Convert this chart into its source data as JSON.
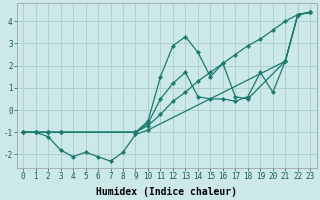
{
  "xlabel": "Humidex (Indice chaleur)",
  "xlim": [
    -0.5,
    23.5
  ],
  "ylim": [
    -2.6,
    4.8
  ],
  "background_color": "#cce8e8",
  "grid_color": "#aed0d0",
  "line_color": "#1a7a6e",
  "lines": [
    {
      "x": [
        0,
        1,
        2,
        3,
        4,
        5,
        6,
        7,
        8,
        9,
        10,
        21,
        22,
        23
      ],
      "y": [
        -1.0,
        -1.0,
        -1.2,
        -1.8,
        -2.1,
        -1.9,
        -2.1,
        -2.3,
        -1.9,
        -1.1,
        -0.9,
        2.2,
        4.3,
        4.4
      ]
    },
    {
      "x": [
        0,
        1,
        2,
        3,
        9,
        10,
        11,
        12,
        13,
        14,
        15,
        16,
        17,
        18,
        19,
        20,
        21,
        22,
        23
      ],
      "y": [
        -1.0,
        -1.0,
        -1.0,
        -1.0,
        -1.0,
        -0.7,
        -0.2,
        0.4,
        0.8,
        1.3,
        1.7,
        2.1,
        2.5,
        2.9,
        3.2,
        3.6,
        4.0,
        4.3,
        4.4
      ]
    },
    {
      "x": [
        0,
        1,
        2,
        3,
        9,
        10,
        11,
        12,
        13,
        14,
        15,
        16,
        17,
        18,
        21,
        22,
        23
      ],
      "y": [
        -1.0,
        -1.0,
        -1.0,
        -1.0,
        -1.0,
        -0.5,
        1.5,
        2.9,
        3.3,
        2.6,
        1.5,
        2.1,
        0.6,
        0.5,
        2.2,
        4.3,
        4.4
      ]
    },
    {
      "x": [
        0,
        1,
        2,
        3,
        9,
        10,
        11,
        12,
        13,
        14,
        15,
        16,
        17,
        18,
        19,
        20,
        21,
        22,
        23
      ],
      "y": [
        -1.0,
        -1.0,
        -1.0,
        -1.0,
        -1.0,
        -0.6,
        0.5,
        1.2,
        1.7,
        0.6,
        0.5,
        0.5,
        0.4,
        0.6,
        1.7,
        0.8,
        2.2,
        4.3,
        4.4
      ]
    }
  ],
  "xticks": [
    0,
    1,
    2,
    3,
    4,
    5,
    6,
    7,
    8,
    9,
    10,
    11,
    12,
    13,
    14,
    15,
    16,
    17,
    18,
    19,
    20,
    21,
    22,
    23
  ],
  "yticks": [
    -2,
    -1,
    0,
    1,
    2,
    3,
    4
  ],
  "tick_fontsize": 5.5,
  "xlabel_fontsize": 7.0
}
